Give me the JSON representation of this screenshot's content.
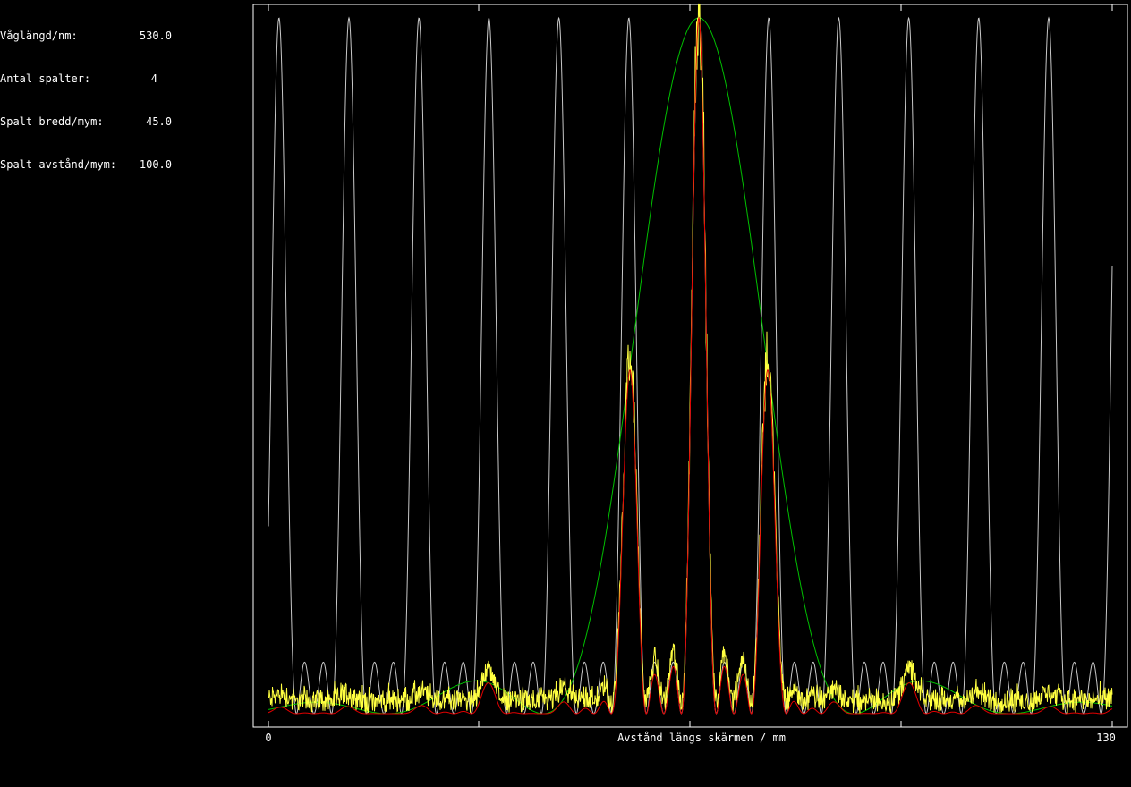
{
  "params": [
    {
      "label": "Våglängd/nm:",
      "value": "530.0"
    },
    {
      "label": "Antal spalter:",
      "value": "4"
    },
    {
      "label": "Spalt bredd/mym:",
      "value": "45.0"
    },
    {
      "label": "Spalt avstånd/mym:",
      "value": "100.0"
    }
  ],
  "chart_data": {
    "type": "line",
    "xlabel": "Avstånd längs skärmen / mm",
    "xlim": [
      0,
      130
    ],
    "x_tick_labels": [
      "0",
      "130"
    ],
    "physics": {
      "wavelength_nm": 530.0,
      "num_slits": 4,
      "slit_width_um": 45.0,
      "slit_spacing_um": 100.0
    },
    "series": [
      {
        "id": "grating",
        "color": "#c8c8c8",
        "description_hidden": true
      },
      {
        "id": "envelope",
        "color": "#00c000"
      },
      {
        "id": "combined",
        "color": "#e00000"
      },
      {
        "id": "measured",
        "color": "#ffff40"
      }
    ],
    "colors": {
      "frame": "#ffffff",
      "background": "#000000"
    }
  }
}
